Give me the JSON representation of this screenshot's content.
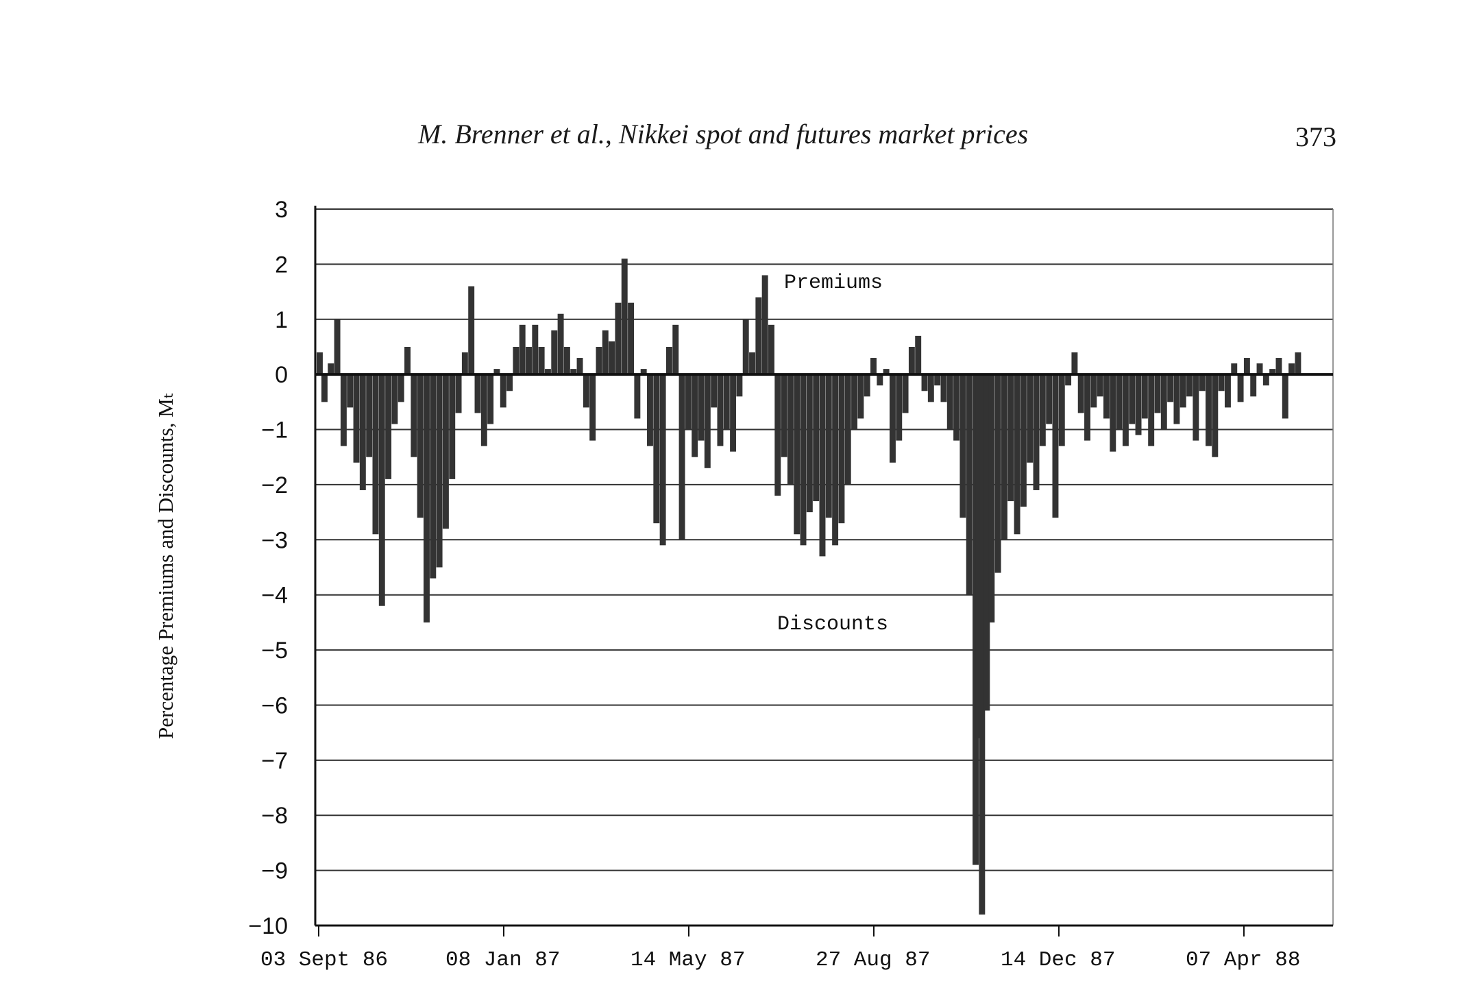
{
  "header": {
    "running_head": "M. Brenner et al., Nikkei spot and futures market prices",
    "page_number": "373"
  },
  "chart_data": {
    "type": "bar",
    "ylabel": "Percentage Premiums and Discounts, Mₜ",
    "xlabel": "",
    "title": "",
    "ylim": [
      -10,
      3
    ],
    "yticks": [
      "3",
      "2",
      "1",
      "0",
      "−1",
      "−2",
      "−3",
      "−4",
      "−5",
      "−6",
      "−7",
      "−8",
      "−9",
      "−10"
    ],
    "x_tick_labels": [
      "03 Sept 86",
      "08 Jan 87",
      "14 May 87",
      "27 Aug 87",
      "14 Dec 87",
      "07 Apr 88"
    ],
    "x_range": [
      "1986-09-03",
      "1988-05-31"
    ],
    "grid": true,
    "annotations": [
      "Premiums",
      "Discounts"
    ],
    "bar_color": "#333333",
    "series": [
      {
        "points": [
          [
            "1986-09-03",
            0.4
          ],
          [
            "1986-09-06",
            -0.5
          ],
          [
            "1986-09-10",
            0.2
          ],
          [
            "1986-09-14",
            1.0
          ],
          [
            "1986-09-18",
            -1.3
          ],
          [
            "1986-09-22",
            -0.6
          ],
          [
            "1986-09-26",
            -1.6
          ],
          [
            "1986-09-30",
            -2.1
          ],
          [
            "1986-10-04",
            -1.5
          ],
          [
            "1986-10-08",
            -2.9
          ],
          [
            "1986-10-12",
            -4.2
          ],
          [
            "1986-10-16",
            -1.9
          ],
          [
            "1986-10-20",
            -0.9
          ],
          [
            "1986-10-24",
            -0.5
          ],
          [
            "1986-10-28",
            0.5
          ],
          [
            "1986-11-01",
            -1.5
          ],
          [
            "1986-11-05",
            -2.6
          ],
          [
            "1986-11-09",
            -4.5
          ],
          [
            "1986-11-13",
            -3.7
          ],
          [
            "1986-11-17",
            -3.5
          ],
          [
            "1986-11-21",
            -2.8
          ],
          [
            "1986-11-25",
            -1.9
          ],
          [
            "1986-11-29",
            -0.7
          ],
          [
            "1986-12-03",
            0.4
          ],
          [
            "1986-12-07",
            1.6
          ],
          [
            "1986-12-11",
            -0.7
          ],
          [
            "1986-12-15",
            -1.3
          ],
          [
            "1986-12-19",
            -0.9
          ],
          [
            "1986-12-23",
            0.1
          ],
          [
            "1986-12-27",
            -0.6
          ],
          [
            "1986-12-31",
            -0.3
          ],
          [
            "1987-01-04",
            0.5
          ],
          [
            "1987-01-08",
            0.9
          ],
          [
            "1987-01-12",
            0.5
          ],
          [
            "1987-01-16",
            0.9
          ],
          [
            "1987-01-20",
            0.5
          ],
          [
            "1987-01-24",
            0.1
          ],
          [
            "1987-01-28",
            0.8
          ],
          [
            "1987-02-01",
            1.1
          ],
          [
            "1987-02-05",
            0.5
          ],
          [
            "1987-02-09",
            0.1
          ],
          [
            "1987-02-13",
            0.3
          ],
          [
            "1987-02-17",
            -0.6
          ],
          [
            "1987-02-21",
            -1.2
          ],
          [
            "1987-02-25",
            0.5
          ],
          [
            "1987-03-01",
            0.8
          ],
          [
            "1987-03-05",
            0.6
          ],
          [
            "1987-03-09",
            1.3
          ],
          [
            "1987-03-13",
            2.1
          ],
          [
            "1987-03-17",
            1.3
          ],
          [
            "1987-03-21",
            -0.8
          ],
          [
            "1987-03-25",
            0.1
          ],
          [
            "1987-03-29",
            -1.3
          ],
          [
            "1987-04-02",
            -2.7
          ],
          [
            "1987-04-06",
            -3.1
          ],
          [
            "1987-04-10",
            0.5
          ],
          [
            "1987-04-14",
            0.9
          ],
          [
            "1987-04-18",
            -3.0
          ],
          [
            "1987-04-22",
            -1.0
          ],
          [
            "1987-04-26",
            -1.5
          ],
          [
            "1987-04-30",
            -1.2
          ],
          [
            "1987-05-04",
            -1.7
          ],
          [
            "1987-05-08",
            -0.6
          ],
          [
            "1987-05-12",
            -1.3
          ],
          [
            "1987-05-16",
            -1.0
          ],
          [
            "1987-05-20",
            -1.4
          ],
          [
            "1987-05-24",
            -0.4
          ],
          [
            "1987-05-28",
            1.0
          ],
          [
            "1987-06-01",
            0.4
          ],
          [
            "1987-06-05",
            1.4
          ],
          [
            "1987-06-09",
            1.8
          ],
          [
            "1987-06-13",
            0.9
          ],
          [
            "1987-06-17",
            -2.2
          ],
          [
            "1987-06-21",
            -1.5
          ],
          [
            "1987-06-25",
            -2.0
          ],
          [
            "1987-06-29",
            -2.9
          ],
          [
            "1987-07-03",
            -3.1
          ],
          [
            "1987-07-07",
            -2.5
          ],
          [
            "1987-07-11",
            -2.3
          ],
          [
            "1987-07-15",
            -3.3
          ],
          [
            "1987-07-19",
            -2.6
          ],
          [
            "1987-07-23",
            -3.1
          ],
          [
            "1987-07-27",
            -2.7
          ],
          [
            "1987-07-31",
            -2.0
          ],
          [
            "1987-08-04",
            -1.0
          ],
          [
            "1987-08-08",
            -0.8
          ],
          [
            "1987-08-12",
            -0.4
          ],
          [
            "1987-08-16",
            0.3
          ],
          [
            "1987-08-20",
            -0.2
          ],
          [
            "1987-08-24",
            0.1
          ],
          [
            "1987-08-28",
            -1.6
          ],
          [
            "1987-09-01",
            -1.2
          ],
          [
            "1987-09-05",
            -0.7
          ],
          [
            "1987-09-09",
            0.5
          ],
          [
            "1987-09-13",
            0.7
          ],
          [
            "1987-09-17",
            -0.3
          ],
          [
            "1987-09-21",
            -0.5
          ],
          [
            "1987-09-25",
            -0.2
          ],
          [
            "1987-09-29",
            -0.5
          ],
          [
            "1987-10-03",
            -1.0
          ],
          [
            "1987-10-07",
            -1.2
          ],
          [
            "1987-10-11",
            -2.6
          ],
          [
            "1987-10-15",
            -4.0
          ],
          [
            "1987-10-19",
            -8.9
          ],
          [
            "1987-10-21",
            -6.6
          ],
          [
            "1987-10-23",
            -9.8
          ],
          [
            "1987-10-26",
            -6.1
          ],
          [
            "1987-10-29",
            -4.5
          ],
          [
            "1987-11-02",
            -3.6
          ],
          [
            "1987-11-06",
            -3.0
          ],
          [
            "1987-11-10",
            -2.3
          ],
          [
            "1987-11-14",
            -2.9
          ],
          [
            "1987-11-18",
            -2.4
          ],
          [
            "1987-11-22",
            -1.6
          ],
          [
            "1987-11-26",
            -2.1
          ],
          [
            "1987-11-30",
            -1.3
          ],
          [
            "1987-12-04",
            -0.9
          ],
          [
            "1987-12-08",
            -2.6
          ],
          [
            "1987-12-12",
            -1.3
          ],
          [
            "1987-12-16",
            -0.2
          ],
          [
            "1987-12-20",
            0.4
          ],
          [
            "1987-12-24",
            -0.7
          ],
          [
            "1987-12-28",
            -1.2
          ],
          [
            "1988-01-01",
            -0.6
          ],
          [
            "1988-01-05",
            -0.4
          ],
          [
            "1988-01-09",
            -0.8
          ],
          [
            "1988-01-13",
            -1.4
          ],
          [
            "1988-01-17",
            -1.0
          ],
          [
            "1988-01-21",
            -1.3
          ],
          [
            "1988-01-25",
            -0.9
          ],
          [
            "1988-01-29",
            -1.1
          ],
          [
            "1988-02-02",
            -0.8
          ],
          [
            "1988-02-06",
            -1.3
          ],
          [
            "1988-02-10",
            -0.7
          ],
          [
            "1988-02-14",
            -1.0
          ],
          [
            "1988-02-18",
            -0.5
          ],
          [
            "1988-02-22",
            -0.9
          ],
          [
            "1988-02-26",
            -0.6
          ],
          [
            "1988-03-01",
            -0.4
          ],
          [
            "1988-03-05",
            -1.2
          ],
          [
            "1988-03-09",
            -0.3
          ],
          [
            "1988-03-13",
            -1.3
          ],
          [
            "1988-03-17",
            -1.5
          ],
          [
            "1988-03-21",
            -0.3
          ],
          [
            "1988-03-25",
            -0.6
          ],
          [
            "1988-03-29",
            0.2
          ],
          [
            "1988-04-02",
            -0.5
          ],
          [
            "1988-04-06",
            0.3
          ],
          [
            "1988-04-10",
            -0.4
          ],
          [
            "1988-04-14",
            0.2
          ],
          [
            "1988-04-18",
            -0.2
          ],
          [
            "1988-04-22",
            0.1
          ],
          [
            "1988-04-26",
            0.3
          ],
          [
            "1988-04-30",
            -0.8
          ],
          [
            "1988-05-04",
            0.2
          ],
          [
            "1988-05-08",
            0.4
          ]
        ]
      }
    ]
  }
}
